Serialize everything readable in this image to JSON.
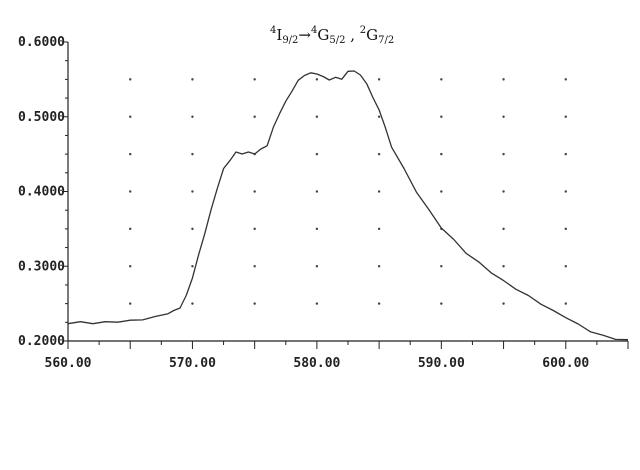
{
  "chart_data": {
    "type": "line",
    "title": {
      "part1_sup": "4",
      "part1_base": "I",
      "part1_sub": "9/2",
      "arrow": "→",
      "part2_sup": "4",
      "part2_base": "G",
      "part2_sub": "5/2",
      "sep": " , ",
      "part3_sup": "2",
      "part3_base": "G",
      "part3_sub": "7/2"
    },
    "xlabel": "",
    "ylabel": "",
    "xlim": [
      560,
      605
    ],
    "ylim": [
      0.2,
      0.6
    ],
    "xticks": [
      560,
      570,
      580,
      590,
      600
    ],
    "xtick_labels": [
      "560.00",
      "570.00",
      "580.00",
      "590.00",
      "600.00"
    ],
    "yticks": [
      0.2,
      0.3,
      0.4,
      0.5,
      0.6
    ],
    "ytick_labels": [
      "0.2000",
      "0.3000",
      "0.4000",
      "0.5000",
      "0.6000"
    ],
    "grid": "dots",
    "grid_x": [
      565,
      570,
      575,
      580,
      585,
      590,
      595,
      600
    ],
    "grid_y": [
      0.25,
      0.3,
      0.35,
      0.4,
      0.45,
      0.5,
      0.55
    ],
    "series": [
      {
        "x": [
          560,
          561,
          562,
          563,
          564,
          565,
          566,
          567,
          568,
          568.5,
          569,
          569.5,
          570,
          570.5,
          571,
          571.5,
          572,
          572.5,
          573,
          573.5,
          574,
          574.5,
          575,
          575.5,
          576,
          576.5,
          577,
          577.5,
          578,
          578.5,
          579,
          579.5,
          580,
          580.5,
          581,
          581.5,
          582,
          582.5,
          583,
          583.5,
          584,
          584.5,
          585,
          585.5,
          586,
          587,
          588,
          589,
          590,
          591,
          592,
          593,
          594,
          595,
          596,
          597,
          598,
          599,
          600,
          601,
          602,
          603,
          604,
          605
        ],
        "y": [
          0.224,
          0.225,
          0.224,
          0.225,
          0.226,
          0.227,
          0.229,
          0.232,
          0.237,
          0.24,
          0.245,
          0.26,
          0.285,
          0.315,
          0.345,
          0.375,
          0.405,
          0.43,
          0.442,
          0.452,
          0.451,
          0.452,
          0.451,
          0.456,
          0.462,
          0.485,
          0.505,
          0.52,
          0.535,
          0.548,
          0.556,
          0.558,
          0.558,
          0.553,
          0.55,
          0.552,
          0.551,
          0.56,
          0.562,
          0.555,
          0.545,
          0.525,
          0.51,
          0.485,
          0.46,
          0.43,
          0.4,
          0.375,
          0.352,
          0.335,
          0.318,
          0.305,
          0.292,
          0.28,
          0.27,
          0.26,
          0.25,
          0.24,
          0.232,
          0.222,
          0.213,
          0.207,
          0.203,
          0.201
        ]
      }
    ]
  }
}
